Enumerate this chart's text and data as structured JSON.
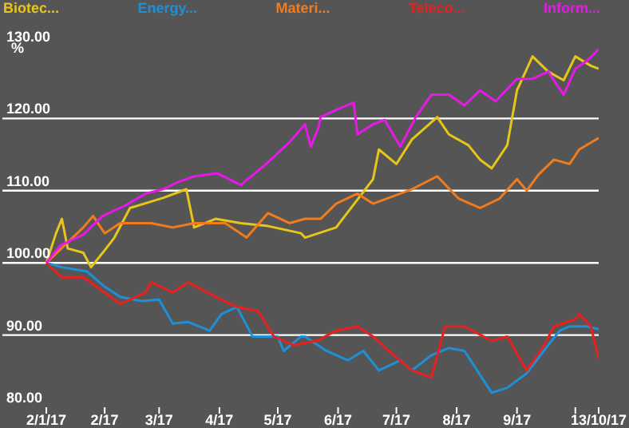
{
  "chart_data": {
    "type": "line",
    "ylabel": "%",
    "legend": "top",
    "grid": "y",
    "xlim": [
      "2016-12-10",
      "2017-10-13"
    ],
    "xticks": [
      {
        "value": "2017-01-02",
        "label": "2/1/17"
      },
      {
        "value": "2017-02-01",
        "label": "2/17"
      },
      {
        "value": "2017-03-01",
        "label": "3/17"
      },
      {
        "value": "2017-04-01",
        "label": "4/17"
      },
      {
        "value": "2017-05-01",
        "label": "5/17"
      },
      {
        "value": "2017-06-01",
        "label": "6/17"
      },
      {
        "value": "2017-07-01",
        "label": "7/17"
      },
      {
        "value": "2017-08-01",
        "label": "8/17"
      },
      {
        "value": "2017-09-01",
        "label": "9/17"
      },
      {
        "value": "2017-10-01",
        "label": null
      },
      {
        "value": "2017-10-13",
        "label": "13/10/17"
      }
    ],
    "ylim": [
      80,
      130
    ],
    "yticks": [
      {
        "value": 80,
        "label": "80.00"
      },
      {
        "value": 90,
        "label": "90.00"
      },
      {
        "value": 100,
        "label": "100.00"
      },
      {
        "value": 110,
        "label": "110.00"
      },
      {
        "value": 120,
        "label": "120.00"
      },
      {
        "value": 130,
        "label": "130.00"
      }
    ],
    "series": [
      {
        "name": "Biotec...",
        "color": "#e6c619",
        "x": [
          "2017-01-02",
          "2017-01-07",
          "2017-01-10",
          "2017-01-13",
          "2017-01-21",
          "2017-01-25",
          "2017-01-31",
          "2017-02-06",
          "2017-02-14",
          "2017-03-03",
          "2017-03-15",
          "2017-03-19",
          "2017-03-30",
          "2017-04-12",
          "2017-04-26",
          "2017-05-13",
          "2017-05-15",
          "2017-05-31",
          "2017-06-19",
          "2017-06-22",
          "2017-07-01",
          "2017-07-09",
          "2017-07-22",
          "2017-07-28",
          "2017-08-07",
          "2017-08-13",
          "2017-08-19",
          "2017-08-27",
          "2017-09-01",
          "2017-09-09",
          "2017-09-17",
          "2017-09-25",
          "2017-10-01",
          "2017-10-09",
          "2017-10-13"
        ],
        "values": [
          100,
          104.1,
          106.1,
          102,
          101.4,
          99.4,
          101.4,
          103.5,
          107.6,
          109,
          110.2,
          104.9,
          106.1,
          105.5,
          105.1,
          104.1,
          103.5,
          104.9,
          111.6,
          115.7,
          113.7,
          117.1,
          120.2,
          117.8,
          116.3,
          114.3,
          113.1,
          116.3,
          123.9,
          128.6,
          126.5,
          125.3,
          128.6,
          127.3,
          126.9
        ]
      },
      {
        "name": "Energy...",
        "color": "#1e90d8",
        "x": [
          "2017-01-02",
          "2017-01-10",
          "2017-01-23",
          "2017-02-01",
          "2017-02-09",
          "2017-02-20",
          "2017-03-01",
          "2017-03-08",
          "2017-03-16",
          "2017-03-27",
          "2017-04-02",
          "2017-04-10",
          "2017-04-18",
          "2017-05-01",
          "2017-05-04",
          "2017-05-13",
          "2017-05-15",
          "2017-05-26",
          "2017-06-06",
          "2017-06-14",
          "2017-06-22",
          "2017-07-03",
          "2017-07-09",
          "2017-07-19",
          "2017-07-28",
          "2017-08-05",
          "2017-08-19",
          "2017-08-27",
          "2017-09-06",
          "2017-09-17",
          "2017-09-23",
          "2017-09-28",
          "2017-10-07",
          "2017-10-13"
        ],
        "values": [
          100,
          99.4,
          98.8,
          96.7,
          95.3,
          94.7,
          94.9,
          91.6,
          91.8,
          90.6,
          92.9,
          93.9,
          89.8,
          89.8,
          87.8,
          89.8,
          89.8,
          87.8,
          86.5,
          87.8,
          85.1,
          86.5,
          85.1,
          87.2,
          88.2,
          87.8,
          82,
          82.7,
          84.7,
          88.6,
          90.6,
          91.2,
          91.2,
          90.8
        ]
      },
      {
        "name": "Materi...",
        "color": "#f07c1e",
        "x": [
          "2017-01-02",
          "2017-01-21",
          "2017-01-26",
          "2017-02-01",
          "2017-02-09",
          "2017-02-25",
          "2017-03-08",
          "2017-03-19",
          "2017-04-04",
          "2017-04-15",
          "2017-04-26",
          "2017-05-07",
          "2017-05-15",
          "2017-05-23",
          "2017-05-31",
          "2017-06-11",
          "2017-06-19",
          "2017-07-09",
          "2017-07-22",
          "2017-08-02",
          "2017-08-13",
          "2017-08-23",
          "2017-09-01",
          "2017-09-06",
          "2017-09-12",
          "2017-09-20",
          "2017-09-28",
          "2017-10-03",
          "2017-10-13"
        ],
        "values": [
          100,
          104.9,
          106.5,
          104.1,
          105.5,
          105.5,
          104.9,
          105.5,
          105.5,
          103.5,
          106.9,
          105.5,
          106.1,
          106.1,
          108.2,
          109.6,
          108.2,
          110.2,
          112,
          108.9,
          107.6,
          108.9,
          111.6,
          110,
          112.2,
          114.3,
          113.7,
          115.7,
          117.3
        ]
      },
      {
        "name": "Teleco...",
        "color": "#e8201e",
        "x": [
          "2017-01-02",
          "2017-01-10",
          "2017-01-21",
          "2017-02-01",
          "2017-02-09",
          "2017-02-22",
          "2017-02-25",
          "2017-03-08",
          "2017-03-16",
          "2017-03-30",
          "2017-04-10",
          "2017-04-21",
          "2017-04-29",
          "2017-05-09",
          "2017-05-21",
          "2017-05-31",
          "2017-06-11",
          "2017-06-19",
          "2017-06-27",
          "2017-07-09",
          "2017-07-19",
          "2017-07-26",
          "2017-08-05",
          "2017-08-19",
          "2017-08-27",
          "2017-09-06",
          "2017-09-15",
          "2017-09-20",
          "2017-10-01",
          "2017-10-03",
          "2017-10-09",
          "2017-10-13"
        ],
        "values": [
          100,
          98,
          98,
          95.9,
          94.3,
          95.9,
          97.3,
          95.9,
          97.3,
          95.3,
          93.9,
          93.3,
          89.8,
          88.6,
          89.2,
          90.6,
          91.2,
          89.8,
          87.8,
          85.1,
          84.1,
          91.2,
          91.2,
          89.2,
          89.8,
          85.1,
          88.6,
          91.2,
          92.2,
          92.9,
          91.2,
          86.7
        ]
      },
      {
        "name": "Inform...",
        "color": "#e619e6",
        "x": [
          "2017-01-02",
          "2017-01-09",
          "2017-01-21",
          "2017-01-31",
          "2017-02-12",
          "2017-02-22",
          "2017-03-03",
          "2017-03-11",
          "2017-03-19",
          "2017-03-31",
          "2017-04-12",
          "2017-04-25",
          "2017-05-07",
          "2017-05-15",
          "2017-05-18",
          "2017-05-22",
          "2017-05-23",
          "2017-05-31",
          "2017-06-09",
          "2017-06-11",
          "2017-06-19",
          "2017-06-25",
          "2017-07-03",
          "2017-07-11",
          "2017-07-19",
          "2017-07-28",
          "2017-08-05",
          "2017-08-13",
          "2017-08-21",
          "2017-09-01",
          "2017-09-09",
          "2017-09-17",
          "2017-09-25",
          "2017-10-01",
          "2017-10-07",
          "2017-10-13"
        ],
        "values": [
          100,
          102.4,
          103.9,
          106.5,
          108,
          109.6,
          110.2,
          111.2,
          112,
          112.4,
          110.8,
          113.7,
          116.7,
          119.2,
          116.1,
          118.8,
          120.2,
          121.2,
          122.2,
          117.8,
          119.2,
          119.8,
          116.1,
          120.2,
          123.3,
          123.3,
          121.8,
          123.9,
          122.4,
          125.5,
          125.5,
          126.5,
          123.3,
          126.9,
          128,
          129.6
        ]
      }
    ]
  }
}
